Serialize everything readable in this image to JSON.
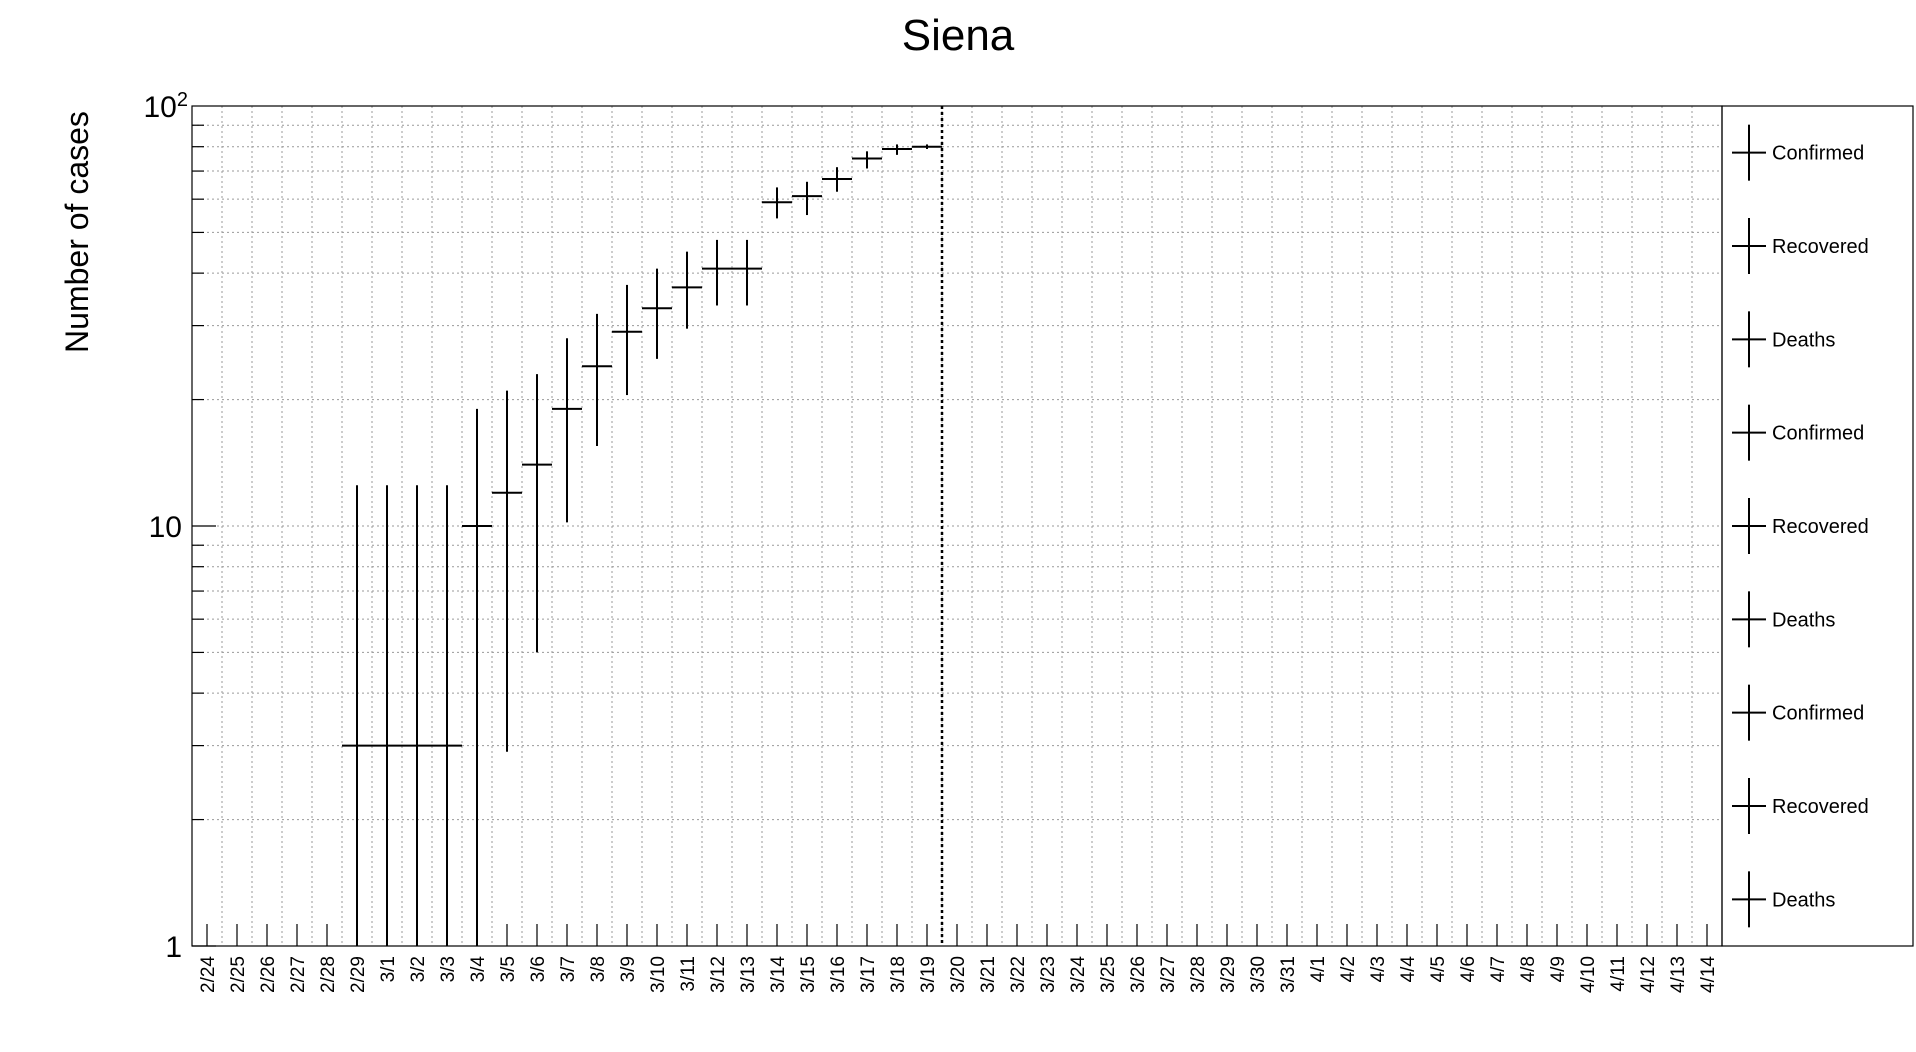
{
  "chart_data": {
    "type": "scatter",
    "title": "Siena",
    "xlabel": "",
    "ylabel": "Number of cases",
    "yscale": "log",
    "ylim": [
      1,
      100
    ],
    "yticks": [
      "1",
      "10",
      "10^2"
    ],
    "grid": true,
    "legend_position": "right",
    "categories": [
      "2/24",
      "2/25",
      "2/26",
      "2/27",
      "2/28",
      "2/29",
      "3/1",
      "3/2",
      "3/3",
      "3/4",
      "3/5",
      "3/6",
      "3/7",
      "3/8",
      "3/9",
      "3/10",
      "3/11",
      "3/12",
      "3/13",
      "3/14",
      "3/15",
      "3/16",
      "3/17",
      "3/18",
      "3/19",
      "3/20",
      "3/21",
      "3/22",
      "3/23",
      "3/24",
      "3/25",
      "3/26",
      "3/27",
      "3/28",
      "3/29",
      "3/30",
      "3/31",
      "4/1",
      "4/2",
      "4/3",
      "4/4",
      "4/5",
      "4/6",
      "4/7",
      "4/8",
      "4/9",
      "4/10",
      "4/11",
      "4/12",
      "4/13",
      "4/14"
    ],
    "divider_after": "3/19",
    "series": [
      {
        "name": "Confirmed",
        "color": "#000000",
        "points": [
          {
            "x": "2/29",
            "y": 3,
            "ylow": 1,
            "yhigh": 12.5
          },
          {
            "x": "3/1",
            "y": 3,
            "ylow": 1,
            "yhigh": 12.5
          },
          {
            "x": "3/2",
            "y": 3,
            "ylow": 1,
            "yhigh": 12.5
          },
          {
            "x": "3/3",
            "y": 3,
            "ylow": 1,
            "yhigh": 12.5
          },
          {
            "x": "3/4",
            "y": 10,
            "ylow": 1,
            "yhigh": 19
          },
          {
            "x": "3/5",
            "y": 12,
            "ylow": 2.9,
            "yhigh": 21
          },
          {
            "x": "3/6",
            "y": 14,
            "ylow": 5,
            "yhigh": 23
          },
          {
            "x": "3/7",
            "y": 19,
            "ylow": 10.2,
            "yhigh": 28
          },
          {
            "x": "3/8",
            "y": 24,
            "ylow": 15.5,
            "yhigh": 32
          },
          {
            "x": "3/9",
            "y": 29,
            "ylow": 20.5,
            "yhigh": 37.5
          },
          {
            "x": "3/10",
            "y": 33,
            "ylow": 25,
            "yhigh": 41
          },
          {
            "x": "3/11",
            "y": 37,
            "ylow": 29.5,
            "yhigh": 45
          },
          {
            "x": "3/12",
            "y": 41,
            "ylow": 33.5,
            "yhigh": 48
          },
          {
            "x": "3/13",
            "y": 41,
            "ylow": 33.5,
            "yhigh": 48
          },
          {
            "x": "3/14",
            "y": 59,
            "ylow": 54,
            "yhigh": 64
          },
          {
            "x": "3/15",
            "y": 61,
            "ylow": 55,
            "yhigh": 66
          },
          {
            "x": "3/16",
            "y": 67,
            "ylow": 62.5,
            "yhigh": 71.5
          },
          {
            "x": "3/17",
            "y": 75,
            "ylow": 71,
            "yhigh": 78
          },
          {
            "x": "3/18",
            "y": 79,
            "ylow": 76.5,
            "yhigh": 81
          },
          {
            "x": "3/19",
            "y": 80,
            "ylow": 79,
            "yhigh": 81
          }
        ]
      }
    ],
    "legend_entries": [
      "Confirmed",
      "Recovered",
      "Deaths",
      "Confirmed",
      "Recovered",
      "Deaths",
      "Confirmed",
      "Recovered",
      "Deaths"
    ]
  }
}
